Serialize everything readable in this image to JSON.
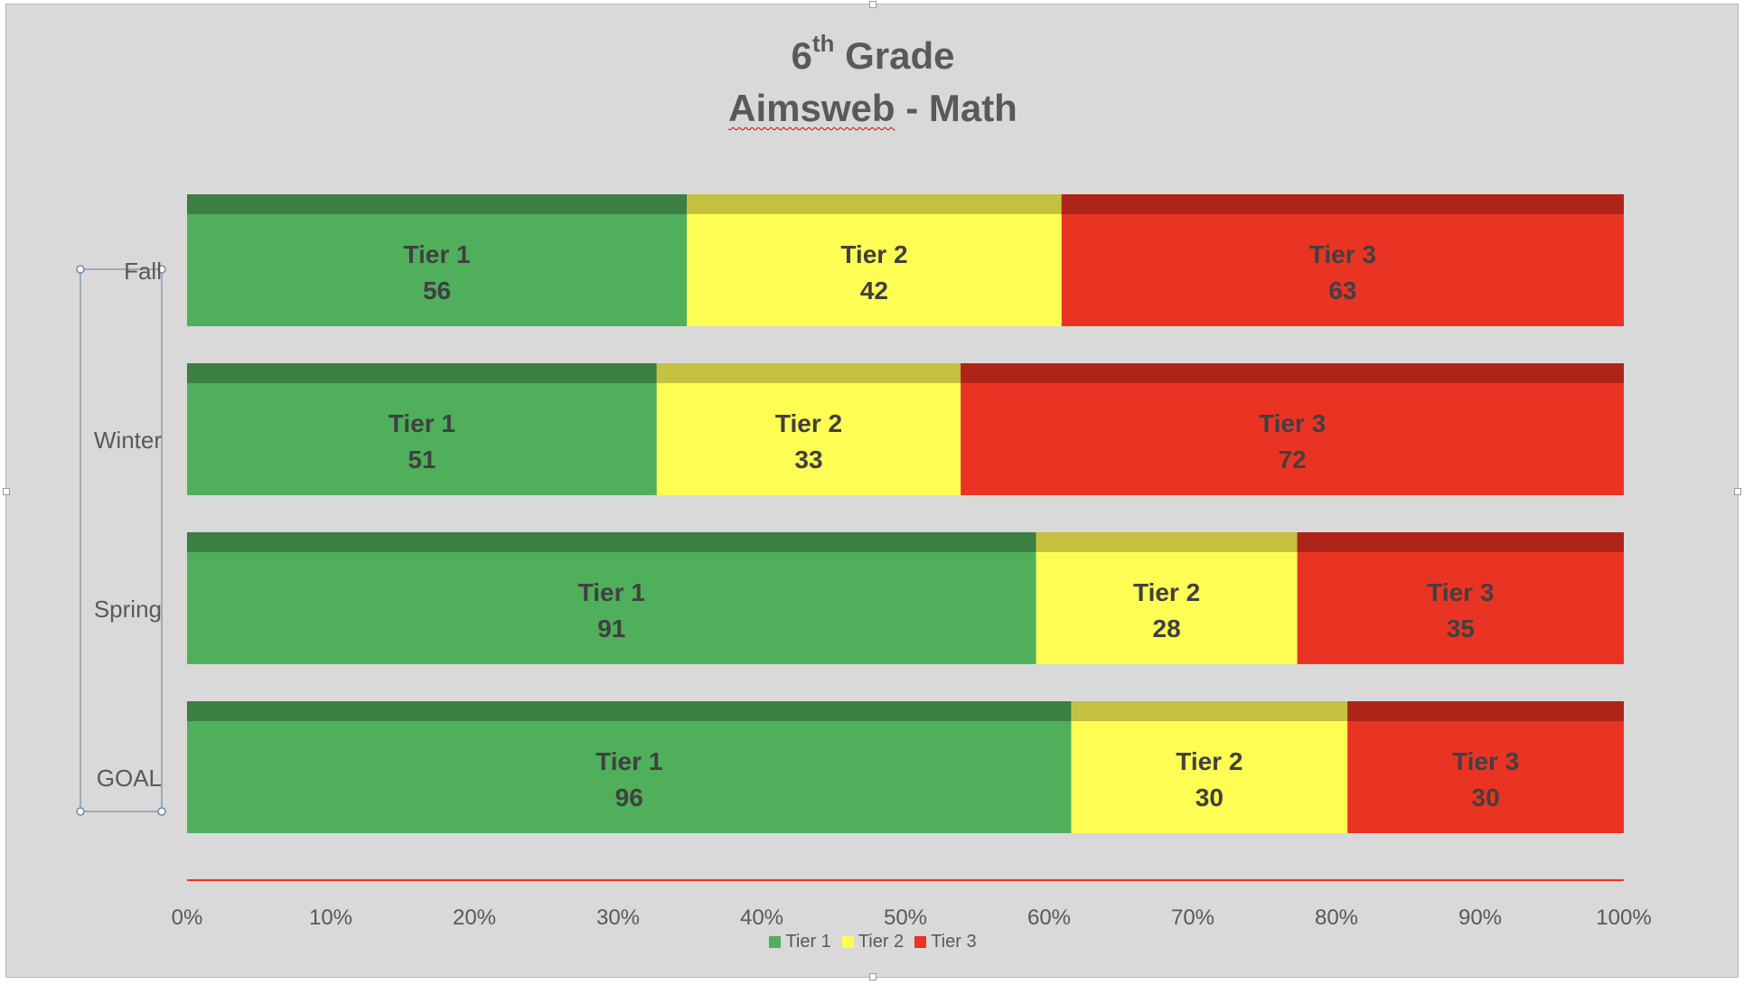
{
  "chart_data": {
    "type": "bar",
    "orientation": "horizontal",
    "stacking": "percent",
    "title": {
      "line1_main": "6",
      "line1_sup": "th",
      "line1_rest": " Grade",
      "line2_word": "Aimsweb",
      "line2_rest": " - Math"
    },
    "categories": [
      "Fall",
      "Winter",
      "Spring",
      "GOAL"
    ],
    "series": [
      {
        "name": "Tier 1",
        "color": "#4faf5b",
        "top_color": "#3b7f43",
        "values": [
          56,
          51,
          91,
          96
        ]
      },
      {
        "name": "Tier 2",
        "color": "#fdfd53",
        "top_color": "#c4c140",
        "values": [
          42,
          33,
          28,
          30
        ]
      },
      {
        "name": "Tier 3",
        "color": "#e93424",
        "top_color": "#af2419",
        "values": [
          63,
          72,
          35,
          30
        ]
      }
    ],
    "x_axis": {
      "ticks": [
        "0%",
        "10%",
        "20%",
        "30%",
        "40%",
        "50%",
        "60%",
        "70%",
        "80%",
        "90%",
        "100%"
      ],
      "range": [
        0,
        100
      ],
      "line_color": "#e93424"
    },
    "grid": false,
    "legend_placement": "bottom",
    "data_label_color": "#404040",
    "axis_label_color": "#595959"
  }
}
